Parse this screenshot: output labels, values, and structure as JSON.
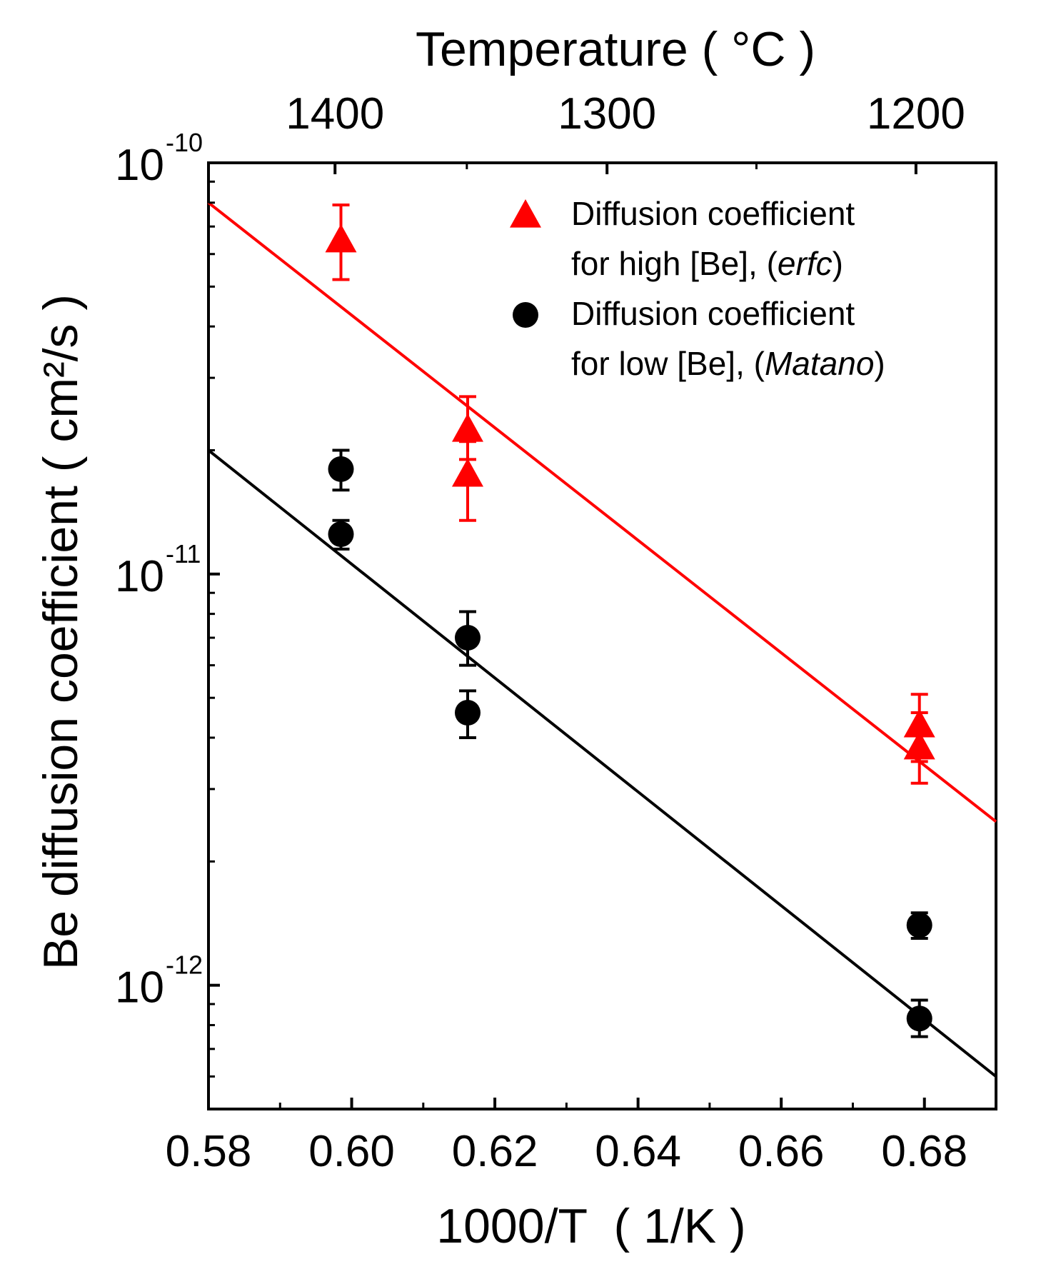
{
  "chart_data": {
    "type": "scatter",
    "title": "",
    "xlabel": "1000/T  ( 1/K )",
    "ylabel": "Be diffusion coefficient ( cm²/s )",
    "top_xlabel": "Temperature ( °C )",
    "xlim": [
      0.58,
      0.69
    ],
    "ylim": [
      5e-13,
      1e-10
    ],
    "yscale": "log",
    "x_ticks": [
      0.58,
      0.6,
      0.62,
      0.64,
      0.66,
      0.68
    ],
    "x_tick_labels": [
      "0.58",
      "0.60",
      "0.62",
      "0.64",
      "0.66",
      "0.68"
    ],
    "top_ticks": [
      1400,
      1300,
      1200
    ],
    "top_tick_labels": [
      "1400",
      "1300",
      "1200"
    ],
    "y_ticks": [
      {
        "value": 1e-10,
        "base": "10",
        "exp": "-10"
      },
      {
        "value": 1e-11,
        "base": "10",
        "exp": "-11"
      },
      {
        "value": 1e-12,
        "base": "10",
        "exp": "-12"
      }
    ],
    "series": [
      {
        "name": "Diffusion coefficient for high [Be], (erfc)",
        "legend_line1": "Diffusion coefficient",
        "legend_line2_prefix": "for high [Be], (",
        "legend_line2_italic": "erfc",
        "legend_line2_suffix": ")",
        "marker": "triangle",
        "color": "#ff0000",
        "points": [
          {
            "x": 0.5985,
            "y": 6.5e-11,
            "err_low": 5.2e-11,
            "err_high": 7.9e-11
          },
          {
            "x": 0.6162,
            "y": 2.25e-11,
            "err_low": 1.9e-11,
            "err_high": 2.7e-11
          },
          {
            "x": 0.6162,
            "y": 1.75e-11,
            "err_low": 1.35e-11,
            "err_high": 2.1e-11
          },
          {
            "x": 0.6793,
            "y": 4.3e-12,
            "err_low": 3.5e-12,
            "err_high": 5.1e-12
          },
          {
            "x": 0.6793,
            "y": 3.8e-12,
            "err_low": 3.1e-12,
            "err_high": 4.6e-12
          }
        ],
        "fit": {
          "x": [
            0.58,
            0.69
          ],
          "y": [
            8e-11,
            2.5e-12
          ]
        }
      },
      {
        "name": "Diffusion coefficient for low [Be], (Matano)",
        "legend_line1": "Diffusion coefficient",
        "legend_line2_prefix": "for low [Be], (",
        "legend_line2_italic": "Matano",
        "legend_line2_suffix": ")",
        "marker": "circle",
        "color": "#000000",
        "points": [
          {
            "x": 0.5985,
            "y": 1.8e-11,
            "err_low": 1.6e-11,
            "err_high": 2e-11
          },
          {
            "x": 0.5985,
            "y": 1.25e-11,
            "err_low": 1.15e-11,
            "err_high": 1.35e-11
          },
          {
            "x": 0.6162,
            "y": 7e-12,
            "err_low": 6e-12,
            "err_high": 8.1e-12
          },
          {
            "x": 0.6162,
            "y": 4.6e-12,
            "err_low": 4e-12,
            "err_high": 5.2e-12
          },
          {
            "x": 0.6793,
            "y": 1.4e-12,
            "err_low": 1.3e-12,
            "err_high": 1.5e-12
          },
          {
            "x": 0.6793,
            "y": 8.3e-13,
            "err_low": 7.5e-13,
            "err_high": 9.2e-13
          }
        ],
        "fit": {
          "x": [
            0.58,
            0.69
          ],
          "y": [
            2e-11,
            6e-13
          ]
        }
      }
    ]
  }
}
